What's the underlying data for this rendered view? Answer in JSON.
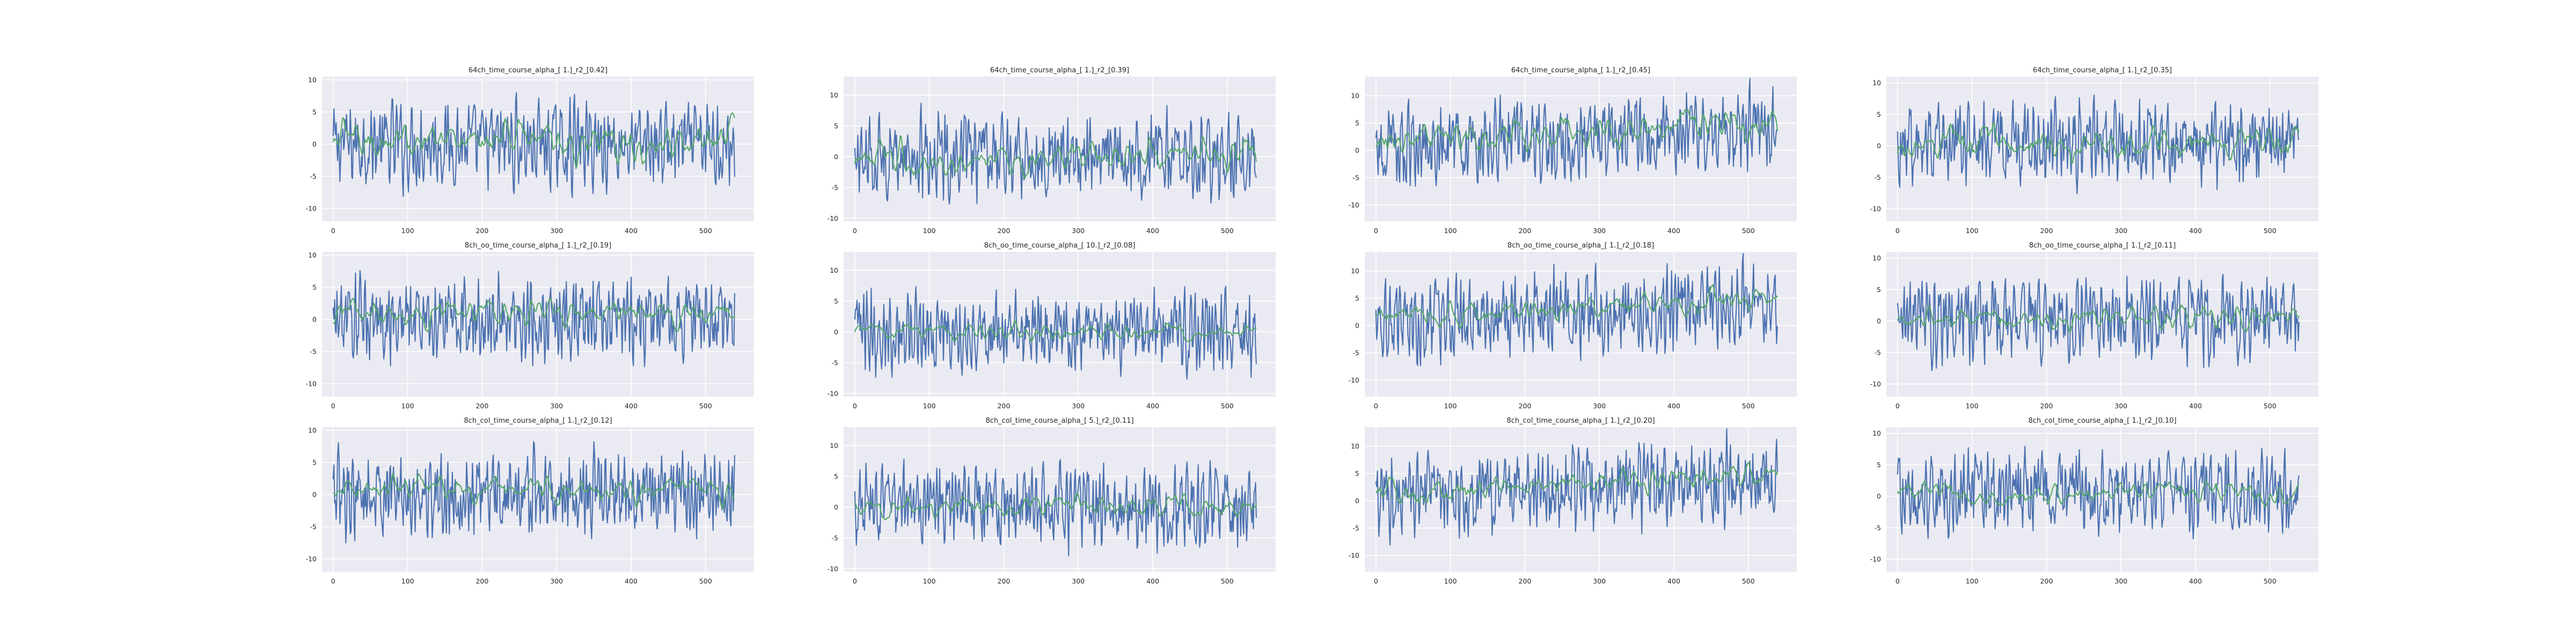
{
  "colors": {
    "series_1": "#4c72b0",
    "series_2": "#55a868",
    "panel_background": "#eaeaf2",
    "grid": "#ffffff"
  },
  "chart_data": [
    {
      "type": "line",
      "title": "64ch_time_course_alpha_[ 1.]_r2_[0.42]",
      "xlim": [
        -15,
        565
      ],
      "ylim": [
        -12,
        10.5
      ],
      "xticks": [
        0,
        100,
        200,
        300,
        400,
        500
      ],
      "yticks": [
        -10,
        -5,
        0,
        5,
        10
      ],
      "grid": true,
      "series": [
        {
          "values_summary": "noisy oscillating signal",
          "mean": 0.0,
          "amplitude": 4.0,
          "length": 540
        },
        {
          "values_summary": "smoother fitted signal",
          "mean": 0.5,
          "amplitude": 2.2,
          "length": 540
        }
      ]
    },
    {
      "type": "line",
      "title": "64ch_time_course_alpha_[ 1.]_r2_[0.39]",
      "xlim": [
        -15,
        565
      ],
      "ylim": [
        -10.5,
        13
      ],
      "xticks": [
        0,
        100,
        200,
        300,
        400,
        500
      ],
      "yticks": [
        -10,
        -5,
        0,
        5,
        10
      ],
      "grid": true,
      "series": [
        {
          "values_summary": "noisy oscillating signal",
          "mean": 0.0,
          "amplitude": 4.0,
          "length": 540
        },
        {
          "values_summary": "smoother fitted signal",
          "mean": 0.0,
          "amplitude": 1.8,
          "length": 540
        }
      ]
    },
    {
      "type": "line",
      "title": "64ch_time_course_alpha_[ 1.]_r2_[0.45]",
      "xlim": [
        -15,
        565
      ],
      "ylim": [
        -13,
        13.5
      ],
      "xticks": [
        0,
        100,
        200,
        300,
        400,
        500
      ],
      "yticks": [
        -10,
        -5,
        0,
        5,
        10
      ],
      "grid": true,
      "series": [
        {
          "values_summary": "noisy oscillating signal",
          "mean": 1.5,
          "amplitude": 4.5,
          "length": 540
        },
        {
          "values_summary": "smoother fitted signal, rising trend",
          "mean": 2.5,
          "amplitude": 2.2,
          "length": 540
        }
      ]
    },
    {
      "type": "line",
      "title": "64ch_time_course_alpha_[ 1.]_r2_[0.35]",
      "xlim": [
        -15,
        565
      ],
      "ylim": [
        -12,
        11
      ],
      "xticks": [
        0,
        100,
        200,
        300,
        400,
        500
      ],
      "yticks": [
        -10,
        -5,
        0,
        5,
        10
      ],
      "grid": true,
      "series": [
        {
          "values_summary": "noisy oscillating signal",
          "mean": 0.5,
          "amplitude": 4.0,
          "length": 540
        },
        {
          "values_summary": "smoother fitted signal",
          "mean": 0.5,
          "amplitude": 1.8,
          "length": 540
        }
      ]
    },
    {
      "type": "line",
      "title": "8ch_oo_time_course_alpha_[ 1.]_r2_[0.19]",
      "xlim": [
        -15,
        565
      ],
      "ylim": [
        -12,
        10.5
      ],
      "xticks": [
        0,
        100,
        200,
        300,
        400,
        500
      ],
      "yticks": [
        -10,
        -5,
        0,
        5,
        10
      ],
      "grid": true,
      "series": [
        {
          "values_summary": "noisy oscillating signal",
          "mean": 0.0,
          "amplitude": 4.0,
          "length": 540
        },
        {
          "values_summary": "smoother fitted signal",
          "mean": 1.0,
          "amplitude": 1.5,
          "length": 540
        }
      ]
    },
    {
      "type": "line",
      "title": "8ch_oo_time_course_alpha_[ 10.]_r2_[0.08]",
      "xlim": [
        -15,
        565
      ],
      "ylim": [
        -10.5,
        13
      ],
      "xticks": [
        0,
        100,
        200,
        300,
        400,
        500
      ],
      "yticks": [
        -10,
        -5,
        0,
        5,
        10
      ],
      "grid": true,
      "series": [
        {
          "values_summary": "noisy oscillating signal",
          "mean": 0.0,
          "amplitude": 4.0,
          "length": 540
        },
        {
          "values_summary": "smoother fitted signal",
          "mean": 0.0,
          "amplitude": 0.9,
          "length": 540
        }
      ]
    },
    {
      "type": "line",
      "title": "8ch_oo_time_course_alpha_[ 1.]_r2_[0.18]",
      "xlim": [
        -15,
        565
      ],
      "ylim": [
        -13,
        13.5
      ],
      "xticks": [
        0,
        100,
        200,
        300,
        400,
        500
      ],
      "yticks": [
        -10,
        -5,
        0,
        5,
        10
      ],
      "grid": true,
      "series": [
        {
          "values_summary": "noisy oscillating signal",
          "mean": 1.5,
          "amplitude": 4.5,
          "length": 540
        },
        {
          "values_summary": "smoother fitted signal, rising trend",
          "mean": 2.5,
          "amplitude": 1.4,
          "length": 540
        }
      ]
    },
    {
      "type": "line",
      "title": "8ch_oo_time_course_alpha_[ 1.]_r2_[0.11]",
      "xlim": [
        -15,
        565
      ],
      "ylim": [
        -12,
        11
      ],
      "xticks": [
        0,
        100,
        200,
        300,
        400,
        500
      ],
      "yticks": [
        -10,
        -5,
        0,
        5,
        10
      ],
      "grid": true,
      "series": [
        {
          "values_summary": "noisy oscillating signal",
          "mean": 0.5,
          "amplitude": 4.0,
          "length": 540
        },
        {
          "values_summary": "smoother fitted signal",
          "mean": 0.5,
          "amplitude": 1.3,
          "length": 540
        }
      ]
    },
    {
      "type": "line",
      "title": "8ch_col_time_course_alpha_[ 1.]_r2_[0.12]",
      "xlim": [
        -15,
        565
      ],
      "ylim": [
        -12,
        10.5
      ],
      "xticks": [
        0,
        100,
        200,
        300,
        400,
        500
      ],
      "yticks": [
        -10,
        -5,
        0,
        5,
        10
      ],
      "grid": true,
      "series": [
        {
          "values_summary": "noisy oscillating signal",
          "mean": 0.0,
          "amplitude": 4.0,
          "length": 540
        },
        {
          "values_summary": "smoother fitted signal",
          "mean": 0.8,
          "amplitude": 1.3,
          "length": 540
        }
      ]
    },
    {
      "type": "line",
      "title": "8ch_col_time_course_alpha_[ 5.]_r2_[0.11]",
      "xlim": [
        -15,
        565
      ],
      "ylim": [
        -10.5,
        13
      ],
      "xticks": [
        0,
        100,
        200,
        300,
        400,
        500
      ],
      "yticks": [
        -10,
        -5,
        0,
        5,
        10
      ],
      "grid": true,
      "series": [
        {
          "values_summary": "noisy oscillating signal",
          "mean": 0.0,
          "amplitude": 4.0,
          "length": 540
        },
        {
          "values_summary": "smoother fitted signal",
          "mean": 0.0,
          "amplitude": 1.2,
          "length": 540
        }
      ]
    },
    {
      "type": "line",
      "title": "8ch_col_time_course_alpha_[ 1.]_r2_[0.20]",
      "xlim": [
        -15,
        565
      ],
      "ylim": [
        -13,
        13.5
      ],
      "xticks": [
        0,
        100,
        200,
        300,
        400,
        500
      ],
      "yticks": [
        -10,
        -5,
        0,
        5,
        10
      ],
      "grid": true,
      "series": [
        {
          "values_summary": "noisy oscillating signal",
          "mean": 1.5,
          "amplitude": 4.5,
          "length": 540
        },
        {
          "values_summary": "smoother fitted signal, rising trend",
          "mean": 2.5,
          "amplitude": 1.6,
          "length": 540
        }
      ]
    },
    {
      "type": "line",
      "title": "8ch_col_time_course_alpha_[ 1.]_r2_[0.10]",
      "xlim": [
        -15,
        565
      ],
      "ylim": [
        -12,
        11
      ],
      "xticks": [
        0,
        100,
        200,
        300,
        400,
        500
      ],
      "yticks": [
        -10,
        -5,
        0,
        5,
        10
      ],
      "grid": true,
      "series": [
        {
          "values_summary": "noisy oscillating signal",
          "mean": 0.5,
          "amplitude": 4.0,
          "length": 540
        },
        {
          "values_summary": "smoother fitted signal",
          "mean": 0.5,
          "amplitude": 1.2,
          "length": 540
        }
      ]
    }
  ]
}
